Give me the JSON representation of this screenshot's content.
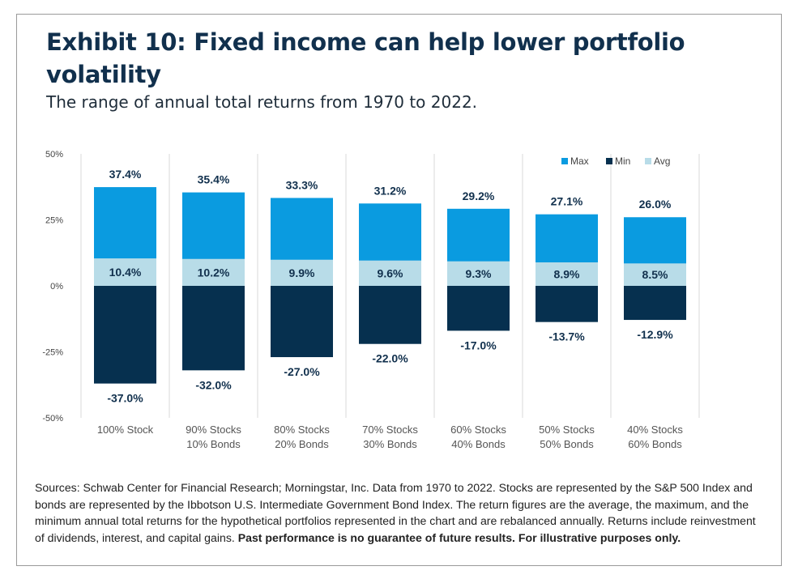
{
  "title": "Exhibit 10: Fixed income can help lower portfolio volatility",
  "subtitle": "The range of annual total returns from 1970 to 2022.",
  "colors": {
    "max": "#0a9be0",
    "min": "#06304f",
    "avg": "#b8dce8",
    "title": "#11304d",
    "gridline": "#d9d9d9"
  },
  "chart_data": {
    "type": "bar",
    "categories": [
      [
        "100% Stock"
      ],
      [
        "90% Stocks",
        "10% Bonds"
      ],
      [
        "80% Stocks",
        "20% Bonds"
      ],
      [
        "70% Stocks",
        "30% Bonds"
      ],
      [
        "60% Stocks",
        "40% Bonds"
      ],
      [
        "50% Stocks",
        "50% Bonds"
      ],
      [
        "40% Stocks",
        "60% Bonds"
      ]
    ],
    "series": [
      {
        "name": "Max",
        "values": [
          37.4,
          35.4,
          33.3,
          31.2,
          29.2,
          27.1,
          26.0
        ],
        "labels": [
          "37.4%",
          "35.4%",
          "33.3%",
          "31.2%",
          "29.2%",
          "27.1%",
          "26.0%"
        ]
      },
      {
        "name": "Min",
        "values": [
          -37.0,
          -32.0,
          -27.0,
          -22.0,
          -17.0,
          -13.7,
          -12.9
        ],
        "labels": [
          "-37.0%",
          "-32.0%",
          "-27.0%",
          "-22.0%",
          "-17.0%",
          "-13.7%",
          "-12.9%"
        ]
      },
      {
        "name": "Avg",
        "values": [
          10.4,
          10.2,
          9.9,
          9.6,
          9.3,
          8.9,
          8.5
        ],
        "labels": [
          "10.4%",
          "10.2%",
          "9.9%",
          "9.6%",
          "9.3%",
          "8.9%",
          "8.5%"
        ]
      }
    ],
    "y_ticks": [
      "50%",
      "25%",
      "0%",
      "-25%",
      "-50%"
    ],
    "ylim": [
      -50,
      50
    ],
    "legend": "top-right",
    "grid": false
  },
  "footnote": {
    "text": "Sources: Schwab Center for Financial Research; Morningstar, Inc. Data from 1970 to 2022. Stocks are represented by the S&P 500 Index and bonds are represented by the Ibbotson U.S. Intermediate Government Bond Index. The return figures are the average, the maximum, and the minimum annual total returns for the hypothetical portfolios represented in the chart and are rebalanced annually. Returns include reinvestment of dividends, interest, and capital gains.",
    "bold": "Past performance is no guarantee of future results. For illustrative purposes only."
  }
}
